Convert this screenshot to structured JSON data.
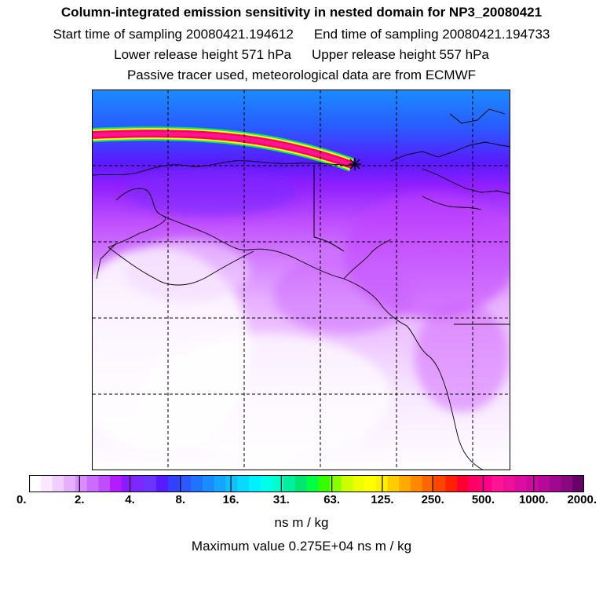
{
  "header": {
    "title": "Column-integrated emission sensitivity in nested domain for NP3_20080421",
    "start_time": "Start time of sampling 20080421.194612",
    "end_time": "End time of sampling 20080421.194733",
    "lower_release": "Lower release height  571 hPa",
    "upper_release": "Upper release height  557 hPa",
    "tracer_note": "Passive tracer used, meteorological data are from ECMWF"
  },
  "map": {
    "region": "Alaska, western Canada and northeast Pacific",
    "release_marker": "star-icon",
    "colors": {
      "ocean_top": "#1a8cff",
      "north_blue": "#5a1aff",
      "purple": "#b400ff",
      "magenta_light": "#e090ff",
      "plume": "#ff1493",
      "coastline": "#000000",
      "gridline": "#000000"
    }
  },
  "colorbar": {
    "labels": [
      "0.",
      "2.",
      "4.",
      "8.",
      "16.",
      "31.",
      "63.",
      "125.",
      "250.",
      "500.",
      "1000.",
      "2000."
    ],
    "colors": [
      "#ffffff",
      "#f9e8ff",
      "#f0cfff",
      "#e6b0ff",
      "#d88cff",
      "#cc6cff",
      "#c04cff",
      "#b21cff",
      "#8a1cff",
      "#7a2aff",
      "#6b35ff",
      "#5a1aff",
      "#3340ff",
      "#2a5aff",
      "#1f74ff",
      "#1a8cff",
      "#14a6ff",
      "#0fc0ff",
      "#09d8ff",
      "#00f0ff",
      "#00ffea",
      "#00ffcc",
      "#00f0a0",
      "#00e670",
      "#00ff44",
      "#33ff00",
      "#88ff00",
      "#ccff00",
      "#eeff00",
      "#ffff00",
      "#ffee00",
      "#ffcc00",
      "#ffaa00",
      "#ff8800",
      "#ff6600",
      "#ff4400",
      "#ff2200",
      "#ff0033",
      "#ff0066",
      "#ff0088",
      "#ff1493",
      "#ee1099",
      "#dd0ca0",
      "#cc0aa0",
      "#b80899",
      "#a00890",
      "#880880",
      "#660066"
    ]
  },
  "footer": {
    "units": "ns m / kg",
    "max_value": "Maximum value  0.275E+04 ns m / kg"
  }
}
